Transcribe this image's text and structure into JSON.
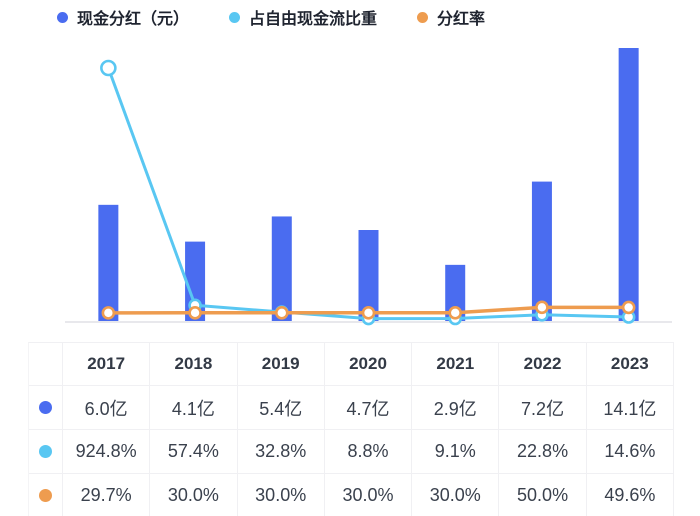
{
  "legend": {
    "items": [
      {
        "id": "cash-dividend",
        "label": "现金分红（元）",
        "color": "#4a6cf0"
      },
      {
        "id": "fcf-ratio",
        "label": "占自由现金流比重",
        "color": "#59c7f2"
      },
      {
        "id": "payout-ratio",
        "label": "分红率",
        "color": "#ee9c4f"
      }
    ]
  },
  "chart_data": {
    "type": "bar",
    "subtype": "bar+line combo, dual implicit axes, no gridlines, no visible axis labels",
    "categories": [
      "2017",
      "2018",
      "2019",
      "2020",
      "2021",
      "2022",
      "2023"
    ],
    "series": [
      {
        "name": "现金分红（元）",
        "type": "bar",
        "unit": "亿",
        "color": "#4a6cf0",
        "values": [
          6.0,
          4.1,
          5.4,
          4.7,
          2.9,
          7.2,
          14.1
        ],
        "labels": [
          "6.0亿",
          "4.1亿",
          "5.4亿",
          "4.7亿",
          "2.9亿",
          "7.2亿",
          "14.1亿"
        ]
      },
      {
        "name": "占自由现金流比重",
        "type": "line",
        "unit": "%",
        "color": "#59c7f2",
        "values": [
          924.8,
          57.4,
          32.8,
          8.8,
          9.1,
          22.8,
          14.6
        ],
        "labels": [
          "924.8%",
          "57.4%",
          "32.8%",
          "8.8%",
          "9.1%",
          "22.8%",
          "14.6%"
        ]
      },
      {
        "name": "分红率",
        "type": "line",
        "unit": "%",
        "color": "#ee9c4f",
        "values": [
          29.7,
          30.0,
          30.0,
          30.0,
          30.0,
          50.0,
          49.6
        ],
        "labels": [
          "29.7%",
          "30.0%",
          "30.0%",
          "30.0%",
          "30.0%",
          "50.0%",
          "49.6%"
        ]
      }
    ],
    "legend_position": "top",
    "grid": false,
    "baseline_color": "#e8e8ec",
    "marker_style": "hollow circle, white fill, colored ring"
  },
  "table": {
    "header": [
      "",
      "2017",
      "2018",
      "2019",
      "2020",
      "2021",
      "2022",
      "2023"
    ],
    "rows": [
      {
        "series": "现金分红（元）",
        "marker_color": "#4a6cf0",
        "cells": [
          "6.0亿",
          "4.1亿",
          "5.4亿",
          "4.7亿",
          "2.9亿",
          "7.2亿",
          "14.1亿"
        ]
      },
      {
        "series": "占自由现金流比重",
        "marker_color": "#59c7f2",
        "cells": [
          "924.8%",
          "57.4%",
          "32.8%",
          "8.8%",
          "9.1%",
          "22.8%",
          "14.6%"
        ]
      },
      {
        "series": "分红率",
        "marker_color": "#ee9c4f",
        "cells": [
          "29.7%",
          "30.0%",
          "30.0%",
          "30.0%",
          "30.0%",
          "50.0%",
          "49.6%"
        ]
      }
    ]
  },
  "colors": {
    "bar_blue": "#4a6cf0",
    "line_cyan": "#59c7f2",
    "line_orange": "#ee9c4f",
    "legend_text": "#1f2430",
    "table_text": "#3a414d",
    "table_border": "#f0f0f3",
    "axis_line": "#e8e8ec",
    "background": "#ffffff"
  }
}
